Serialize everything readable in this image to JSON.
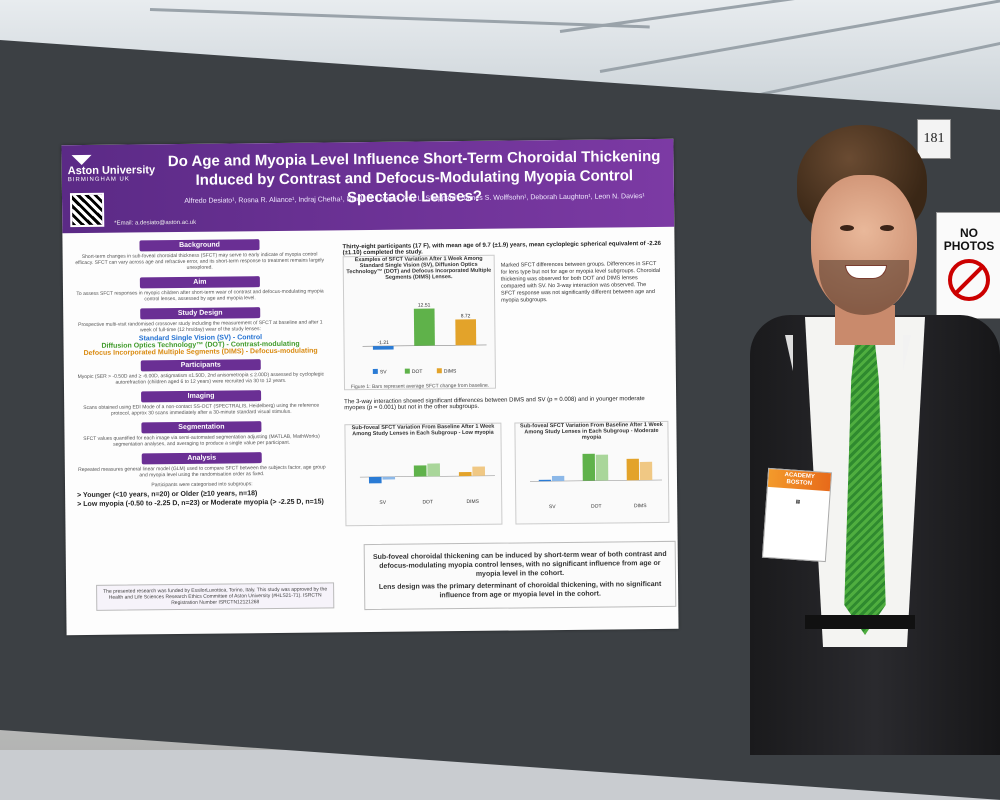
{
  "booth": {
    "number": "181"
  },
  "sign": {
    "text": "NO PHOTOS"
  },
  "poster": {
    "logo": {
      "name": "Aston University",
      "sub": "BIRMINGHAM UK"
    },
    "title": "Do Age and Myopia Level Influence Short-Term Choroidal Thickening Induced by Contrast and Defocus-Modulating Myopia Control Spectacle Lenses?",
    "authors": "Alfredo Desiato¹, Rosna R. Aliance¹, Indraj Chetha¹, Nicola S. Logan¹, Amy L. Sheppard¹, James S. Wolffsohn¹, Deborah Laughton¹, Leon N. Davies¹",
    "email": "*Email: a.desiato@aston.ac.uk",
    "sections": {
      "background": {
        "heading": "Background",
        "text": "Short-term changes in sub-foveal choroidal thickness (SFCT) may serve to early indicate of myopia control efficacy. SFCT can vary across age and refractive error, and its short-term response to treatment remains largely unexplored."
      },
      "aim": {
        "heading": "Aim",
        "text": "To assess SFCT responses in myopic children after short-term wear of contrast and defocus-modulating myopia control lenses, assessed by age and myopia level."
      },
      "design": {
        "heading": "Study Design",
        "text": "Prospective multi-visit randomised crossover study including the measurement of SFCT at baseline and after 1 week of full-time (12 hrs/day) wear of the study lenses:",
        "lens_sv": "Standard Single Vision (SV) - Control",
        "lens_dot": "Diffusion Optics Technology™ (DOT) - Contrast-modulating",
        "lens_dims": "Defocus Incorporated Multiple Segments (DIMS) - Defocus-modulating"
      },
      "participants": {
        "heading": "Participants",
        "text": "Myopic (SER > -0.50D and ≥ -6.00D, astigmatism ≤1.50D, 2nd anisometropia ≤ 2.00D) assessed by cycloplegic autorefraction (children aged 6 to 12 years) were recruited via 30 to 12 years."
      },
      "imaging": {
        "heading": "Imaging",
        "text": "Scans obtained using EDI Mode of a non-contact SS-OCT (SPECTRALIS, Heidelberg) using the reference protocol, approx 30 scans immediately after a 30-minute standard visual stimulus."
      },
      "segmentation": {
        "heading": "Segmentation",
        "text": "SFCT values quantified for each image via semi-automated segmentation adjusting (MATLAB, MathWorks) segmentation analyses, and averaging to produce a single value per participant."
      },
      "analysis": {
        "heading": "Analysis",
        "text": "Repeated measures general linear model (GLM) used to compare SFCT between the subjects factor, age group and myopia level using the randomisation order as fixed.",
        "groups": "Participants were categorised into subgroups:",
        "age": "> Younger (<10 years, n=20) or Older (≥10 years, n=18)",
        "myopia": "> Low myopia (-0.50 to -2.25 D, n=23) or Moderate myopia (> -2.25 D, n=15)"
      }
    },
    "funding": "The presented research was funded by EssilorLuxottica, Torino, Italy. This study was approved by the Health and Life Sciences Research Ethics Committee of Aston University (#HLS21-71). ISRCTN Registration Number ISRCTN12121268",
    "results": {
      "top": "Thirty-eight participants (17 F), with mean age of 9.7 (±1.9) years, mean cycloplegic spherical equivalent of -2.26 (±1.10) completed the study.",
      "chart1_caption": "Examples of SFCT Variation After 1 Week Among Standard Single Vision (SV), Diffusion Optics Technology™ (DOT) and Defocus Incorporated Multiple Segments (DIMS) Lenses.",
      "chart1_note": "Figure 1: Bars represent average SFCT change from baseline.",
      "text_right": "Marked SFCT differences between groups. Differences in SFCT for lens type but not for age or myopia level subgroups. Choroidal thickening was observed for both DOT and DIMS lenses compared with SV. No 3-way interaction was observed. The SFCT response was not significantly different between age and myopia subgroups.",
      "mid": "The 3-way interaction showed significant differences between DIMS and SV (p = 0.008) and in younger moderate myopes (p = 0.001) but not in the other subgroups.",
      "chart2_title": "Sub-foveal SFCT Variation From Baseline After 1 Week Among Study Lenses in Each Subgroup - Low myopia",
      "chart3_title": "Sub-foveal SFCT Variation From Baseline After 1 Week Among Study Lenses in Each Subgroup - Moderate myopia",
      "conclusion1": "Sub-foveal choroidal thickening can be induced by short-term wear of both contrast and defocus-modulating myopia control lenses, with no significant influence from age or myopia level in the cohort.",
      "conclusion2": "Lens design was the primary determinant of choroidal thickening, with no significant influence from age or myopia level in the cohort."
    }
  },
  "chart_data": [
    {
      "type": "bar",
      "categories": [
        "SV",
        "DOT",
        "DIMS"
      ],
      "values": [
        -1.21,
        12.51,
        8.72
      ],
      "ylim": [
        -5,
        20
      ],
      "legend": [
        "SV",
        "DOT",
        "DIMS"
      ],
      "legend_position": "bottom",
      "colors": [
        "#2a7bd5",
        "#5fb24a",
        "#e3a32a"
      ]
    },
    {
      "type": "bar",
      "title": "Low myopia",
      "categories": [
        "SV",
        "DOT",
        "DIMS"
      ],
      "series": [
        {
          "name": "Younger",
          "values": [
            -5.33,
            9.24,
            3.25
          ]
        },
        {
          "name": "Older",
          "values": [
            -2.24,
            10.7,
            7.75
          ]
        }
      ],
      "ylim": [
        -15,
        30
      ]
    },
    {
      "type": "bar",
      "title": "Moderate myopia",
      "categories": [
        "SV",
        "DOT",
        "DIMS"
      ],
      "series": [
        {
          "name": "Younger",
          "values": [
            1.18,
            22.42,
            17.9
          ]
        },
        {
          "name": "Older",
          "values": [
            4.2,
            21.6,
            15.2
          ]
        }
      ],
      "ylim": [
        -15,
        30
      ]
    }
  ],
  "badge": {
    "line1": "ACADEMY",
    "line2": "BOSTON"
  }
}
